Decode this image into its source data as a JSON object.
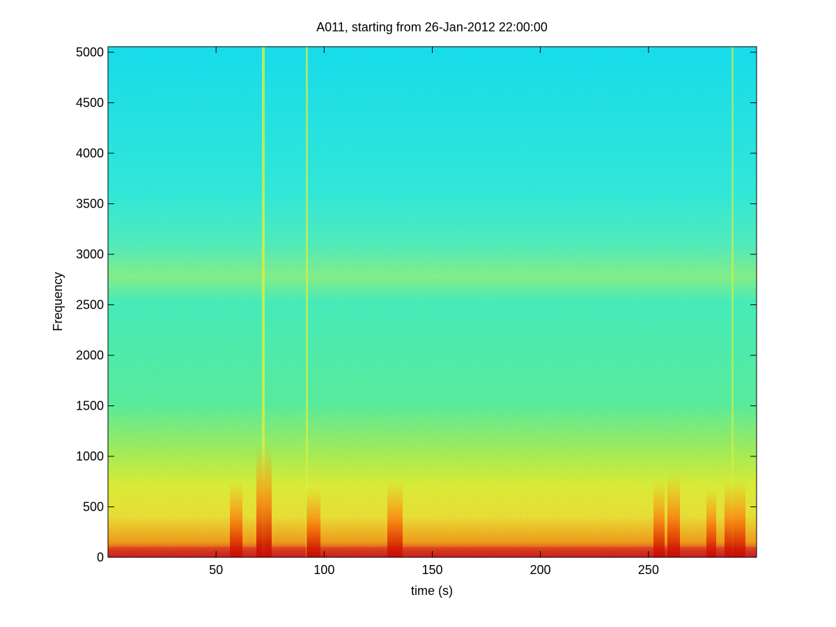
{
  "chart_data": {
    "type": "spectrogram",
    "title": "A011, starting from 26-Jan-2012 22:00:00",
    "xlabel": "time (s)",
    "ylabel": "Frequency",
    "xlim": [
      0,
      300
    ],
    "xticks": [
      50,
      100,
      150,
      200,
      250
    ],
    "ylim": [
      0,
      5055
    ],
    "yticks": [
      0,
      500,
      1000,
      1500,
      2000,
      2500,
      3000,
      3500,
      4000,
      4500,
      5000
    ],
    "colormap": "jet"
  }
}
